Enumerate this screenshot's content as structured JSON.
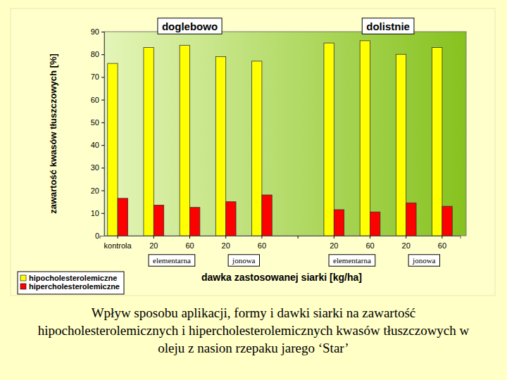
{
  "chart_data": {
    "type": "bar",
    "title": "Wpływ sposobu aplikacji, formy i dawki siarki na zawartość hipocholesterolemicznych i hipercholesterolemicznych kwasów tłuszczowych w oleju z nasion rzepaku jarego ‘Star’",
    "panels": [
      "doglebowo",
      "dolistnie"
    ],
    "x_groups": [
      "elementarna",
      "jonowa",
      "elementarna",
      "jonowa"
    ],
    "categories": [
      "kontrola",
      "20",
      "60",
      "20",
      "60",
      null,
      "20",
      "60",
      "20",
      "60"
    ],
    "series": [
      {
        "name": "hipocholesterolemiczne",
        "color": "#ffff00",
        "values": [
          76,
          83,
          84,
          79,
          77,
          null,
          85,
          86,
          80,
          83
        ]
      },
      {
        "name": "hipercholesterolemiczne",
        "color": "#ff0000",
        "values": [
          16.5,
          13.5,
          12.5,
          15,
          18,
          null,
          11.5,
          10.5,
          14.5,
          13
        ]
      }
    ],
    "x_label": "dawka zastosowanej siarki [kg/ha]",
    "y_label": "zawartość kwasów tłuszczowych [%]",
    "ylim": [
      0,
      90
    ],
    "yticks": [
      0,
      10,
      20,
      30,
      40,
      50,
      60,
      70,
      80,
      90
    ],
    "grid": false,
    "legend": "bottom-left"
  }
}
